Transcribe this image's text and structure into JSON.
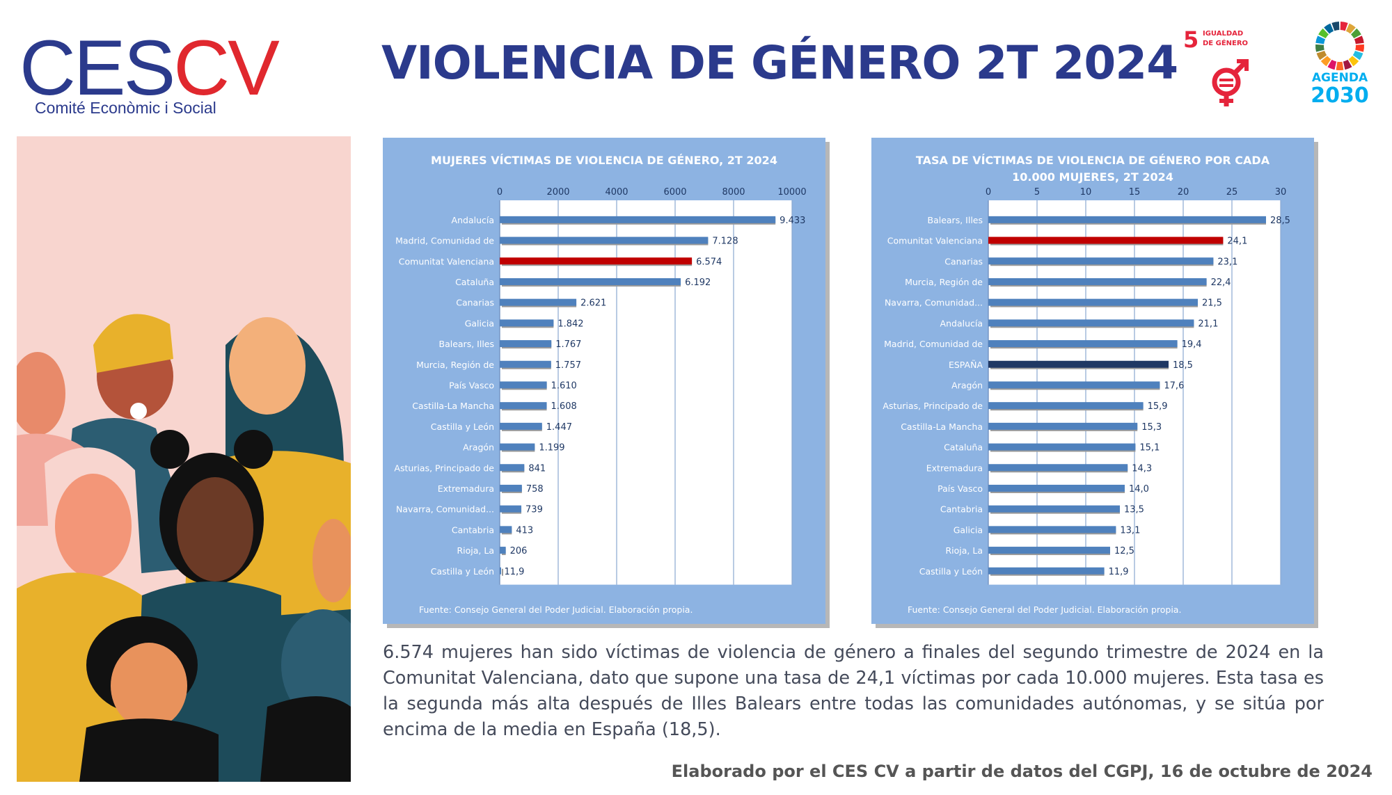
{
  "header": {
    "logo_main": "CESCV",
    "logo_sub": "Comité Econòmic i Social",
    "title": "VIOLENCIA DE GÉNERO 2T 2024",
    "sdg5_number": "5",
    "sdg5_line1": "IGUALDAD",
    "sdg5_line2": "DE GÉNERO",
    "agenda_line1": "AGENDA",
    "agenda_line2": "2030"
  },
  "colors": {
    "navy": "#2b3a8c",
    "panel_bg": "#8db3e2",
    "bar": "#4f81bd",
    "highlight_red": "#c00000",
    "highlight_navy": "#1f3864",
    "logo_red": "#e0282e"
  },
  "chart_data": [
    {
      "type": "bar",
      "orientation": "horizontal",
      "title": "MUJERES VÍCTIMAS DE VIOLENCIA DE GÉNERO, 2T 2024",
      "title_lines": [
        "MUJERES VÍCTIMAS DE VIOLENCIA DE GÉNERO, 2T 2024"
      ],
      "categories": [
        "Andalucía",
        "Madrid, Comunidad de",
        "Comunitat Valenciana",
        "Cataluña",
        "Canarias",
        "Galicia",
        "Balears, Illes",
        "Murcia, Región de",
        "País Vasco",
        "Castilla-La Mancha",
        "Castilla y León",
        "Aragón",
        "Asturias, Principado de",
        "Extremadura",
        "Navarra, Comunidad...",
        "Cantabria",
        "Rioja, La",
        "Castilla y León"
      ],
      "values": [
        9433,
        7128,
        6574,
        6192,
        2621,
        1842,
        1767,
        1757,
        1610,
        1608,
        1447,
        1199,
        841,
        758,
        739,
        413,
        206,
        11.9
      ],
      "value_labels": [
        "9.433",
        "7.128",
        "6.574",
        "6.192",
        "2.621",
        "1.842",
        "1.767",
        "1.757",
        "1.610",
        "1.608",
        "1.447",
        "1.199",
        "841",
        "758",
        "739",
        "413",
        "206",
        "11,9"
      ],
      "highlight": {
        "2": "red"
      },
      "xlim": [
        0,
        10000
      ],
      "ticks": [
        0,
        2000,
        4000,
        6000,
        8000,
        10000
      ],
      "tick_labels": [
        "0",
        "2000",
        "4000",
        "6000",
        "8000",
        "10000"
      ],
      "axis_position": "top",
      "grid": true,
      "source": "Fuente:  Consejo General del Poder Judicial. Elaboración propia."
    },
    {
      "type": "bar",
      "orientation": "horizontal",
      "title": "TASA DE VÍCTIMAS DE VIOLENCIA DE GÉNERO POR CADA 10.000 MUJERES, 2T 2024",
      "title_lines": [
        "TASA DE VÍCTIMAS DE VIOLENCIA DE GÉNERO POR CADA",
        "10.000 MUJERES, 2T 2024"
      ],
      "categories": [
        "Balears, Illes",
        "Comunitat Valenciana",
        "Canarias",
        "Murcia, Región de",
        "Navarra, Comunidad...",
        "Andalucía",
        "Madrid, Comunidad de",
        "ESPAÑA",
        "Aragón",
        "Asturias, Principado de",
        "Castilla-La Mancha",
        "Cataluña",
        "Extremadura",
        "País Vasco",
        "Cantabria",
        "Galicia",
        "Rioja, La",
        "Castilla y León"
      ],
      "values": [
        28.5,
        24.1,
        23.1,
        22.4,
        21.5,
        21.1,
        19.4,
        18.5,
        17.6,
        15.9,
        15.3,
        15.1,
        14.3,
        14.0,
        13.5,
        13.1,
        12.5,
        11.9
      ],
      "value_labels": [
        "28,5",
        "24,1",
        "23,1",
        "22,4",
        "21,5",
        "21,1",
        "19,4",
        "18,5",
        "17,6",
        "15,9",
        "15,3",
        "15,1",
        "14,3",
        "14,0",
        "13,5",
        "13,1",
        "12,5",
        "11,9"
      ],
      "highlight": {
        "1": "red",
        "7": "navy"
      },
      "xlim": [
        0,
        30
      ],
      "ticks": [
        0,
        5,
        10,
        15,
        20,
        25,
        30
      ],
      "tick_labels": [
        "0",
        "5",
        "10",
        "15",
        "20",
        "25",
        "30"
      ],
      "axis_position": "top",
      "grid": true,
      "source": "Fuente:  Consejo General del Poder Judicial. Elaboración propia."
    }
  ],
  "body": {
    "paragraph": "6.574 mujeres han sido víctimas de violencia de género a finales del segundo trimestre de 2024 en la Comunitat Valenciana, dato que supone una tasa de 24,1 víctimas por cada 10.000 mujeres. Esta tasa es la segunda más alta después de Illes Balears entre todas las comunidades autónomas, y se sitúa por encima de la media en España (18,5).",
    "footer": "Elaborado por el CES CV a partir de datos del CGPJ, 16 de octubre de 2024"
  }
}
